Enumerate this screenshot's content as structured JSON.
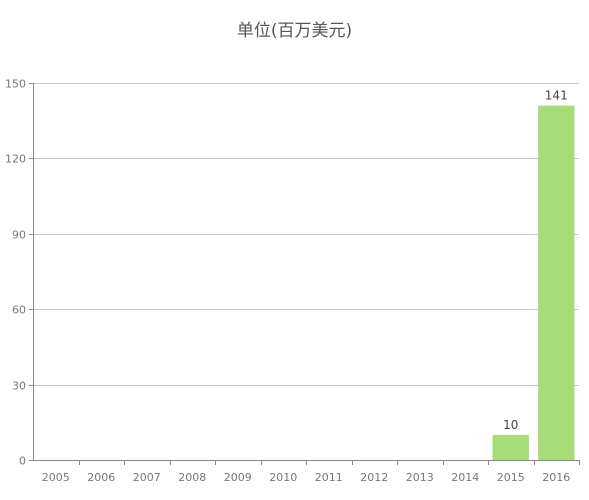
{
  "chart_data": {
    "type": "bar",
    "title": "单位(百万美元)",
    "categories": [
      "2005",
      "2006",
      "2007",
      "2008",
      "2009",
      "2010",
      "2011",
      "2012",
      "2013",
      "2014",
      "2015",
      "2016"
    ],
    "values": [
      0,
      0,
      0,
      0,
      0,
      0,
      0,
      0,
      0,
      0,
      10,
      141
    ],
    "data_labels": [
      null,
      null,
      null,
      null,
      null,
      null,
      null,
      null,
      null,
      null,
      "10",
      "141"
    ],
    "ylim": [
      0,
      150
    ],
    "yticks": [
      0,
      30,
      60,
      90,
      120,
      150
    ],
    "xlabel": "",
    "ylabel": "",
    "grid": true,
    "legend": "none",
    "colors": {
      "bar": "#a6dd78",
      "grid": "#c8c8c8",
      "axis": "#888888",
      "tick_text": "#777777",
      "label_text": "#444444"
    }
  }
}
